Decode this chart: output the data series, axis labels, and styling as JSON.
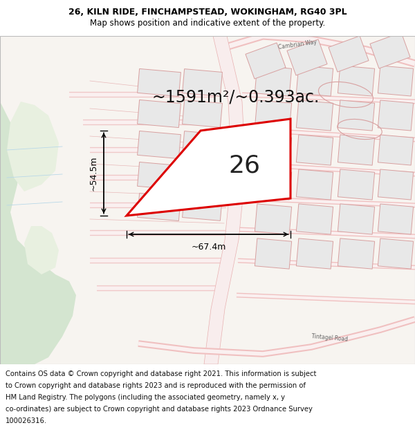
{
  "title_line1": "26, KILN RIDE, FINCHAMPSTEAD, WOKINGHAM, RG40 3PL",
  "title_line2": "Map shows position and indicative extent of the property.",
  "area_text": "~1591m²/~0.393ac.",
  "plot_number": "26",
  "dim_width": "~67.4m",
  "dim_height": "~54.5m",
  "footer_lines": [
    "Contains OS data © Crown copyright and database right 2021. This information is subject",
    "to Crown copyright and database rights 2023 and is reproduced with the permission of",
    "HM Land Registry. The polygons (including the associated geometry, namely x, y",
    "co-ordinates) are subject to Crown copyright and database rights 2023 Ordnance Survey",
    "100026316."
  ],
  "bg_color": "#ffffff",
  "map_bg": "#f7f4f0",
  "road_color": "#f0c0c0",
  "plot_fill": "#ffffff",
  "plot_edge": "#dd0000",
  "green_fill": "#d4e5d0",
  "green_stroke": "#c0d8b8",
  "building_fill": "#e8e8e8",
  "building_edge": "#d8a0a0",
  "title_fontsize": 9.0,
  "subtitle_fontsize": 8.5,
  "footer_fontsize": 7.2,
  "area_fontsize": 17,
  "plot_num_fontsize": 26,
  "dim_fontsize": 9
}
